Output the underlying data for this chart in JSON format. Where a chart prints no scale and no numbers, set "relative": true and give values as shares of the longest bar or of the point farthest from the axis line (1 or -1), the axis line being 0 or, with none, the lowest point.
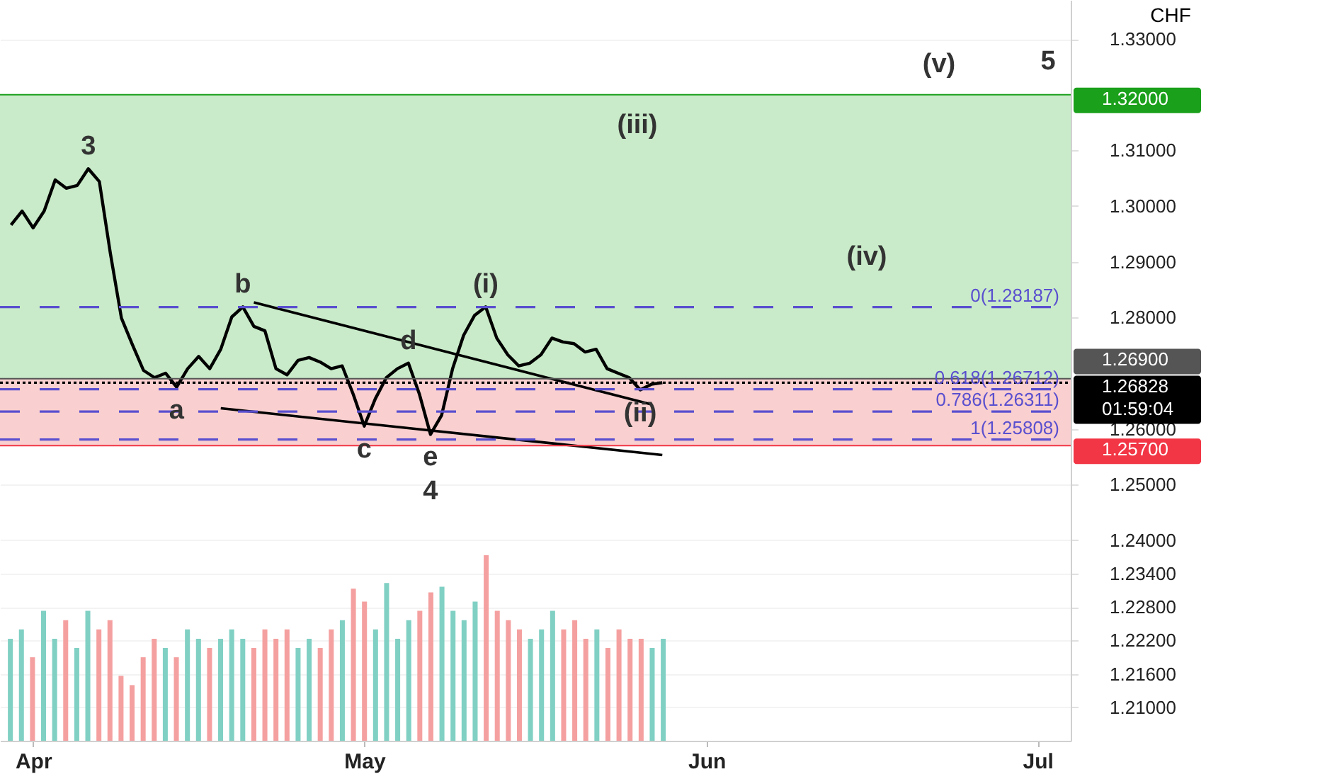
{
  "chart_data": [
    {
      "type": "line",
      "ylabel": "CHF",
      "x": [
        "--03-30",
        "--03-31",
        "--04-01",
        "--04-02",
        "--04-03",
        "--04-04",
        "--04-05",
        "--04-06",
        "--04-07",
        "--04-08",
        "--04-09",
        "--04-10",
        "--04-11",
        "--04-12",
        "--04-13",
        "--04-14",
        "--04-15",
        "--04-16",
        "--04-17",
        "--04-18",
        "--04-19",
        "--04-20",
        "--04-21",
        "--04-22",
        "--04-23",
        "--04-24",
        "--04-25",
        "--04-26",
        "--04-27",
        "--04-28",
        "--04-29",
        "--04-30",
        "--05-01",
        "--05-02",
        "--05-03",
        "--05-04",
        "--05-05",
        "--05-06",
        "--05-07",
        "--05-08",
        "--05-09",
        "--05-10",
        "--05-11",
        "--05-12",
        "--05-13",
        "--05-14",
        "--05-15",
        "--05-16",
        "--05-17",
        "--05-18",
        "--05-19",
        "--05-20",
        "--05-21",
        "--05-22",
        "--05-23",
        "--05-24",
        "--05-25",
        "--05-26",
        "--05-27",
        "--05-28"
      ],
      "series": [
        {
          "color": "#000000",
          "values": [
            1.2966,
            1.2991,
            1.2961,
            1.2991,
            1.3047,
            1.3032,
            1.3037,
            1.3067,
            1.3044,
            1.2915,
            1.2799,
            1.2751,
            1.2705,
            1.2692,
            1.27,
            1.2675,
            1.2708,
            1.273,
            1.2708,
            1.2743,
            1.2801,
            1.2819,
            1.2784,
            1.2776,
            1.2708,
            1.2697,
            1.2723,
            1.2728,
            1.272,
            1.2708,
            1.2713,
            1.2662,
            1.2605,
            1.2654,
            1.2692,
            1.2708,
            1.2718,
            1.2662,
            1.259,
            1.2624,
            1.2708,
            1.2768,
            1.2804,
            1.2819,
            1.2763,
            1.2733,
            1.2713,
            1.2718,
            1.2733,
            1.2763,
            1.2756,
            1.2753,
            1.2738,
            1.2743,
            1.2708,
            1.27,
            1.2692,
            1.267,
            1.268,
            1.2683
          ]
        },
        {
          "type": "line",
          "x": [
            "--04-21",
            "--05-27"
          ],
          "color": "#000000",
          "values": [
            1.2827,
            1.2644
          ]
        },
        {
          "type": "line",
          "x": [
            "--04-18",
            "--05-28"
          ],
          "color": "#000000",
          "values": [
            1.2637,
            1.2553
          ]
        }
      ],
      "xlim": [
        "--03-29",
        "--07-04"
      ],
      "ylim": [
        1.204,
        1.337
      ],
      "xticks": [
        {
          "value": "--04-01",
          "label": "Apr"
        },
        {
          "value": "--05-01",
          "label": "May"
        },
        {
          "value": "--06-01",
          "label": "Jun"
        },
        {
          "value": "--07-01",
          "label": "Jul"
        }
      ],
      "yticks": [
        {
          "value": 1.21,
          "label": "1.21000"
        },
        {
          "value": 1.216,
          "label": "1.21600"
        },
        {
          "value": 1.222,
          "label": "1.22200"
        },
        {
          "value": 1.228,
          "label": "1.22800"
        },
        {
          "value": 1.234,
          "label": "1.23400"
        },
        {
          "value": 1.24,
          "label": "1.24000"
        },
        {
          "value": 1.25,
          "label": "1.25000"
        },
        {
          "value": 1.26,
          "label": "1.26000"
        },
        {
          "value": 1.28,
          "label": "1.28000"
        },
        {
          "value": 1.29,
          "label": "1.29000"
        },
        {
          "value": 1.3,
          "label": "1.30000"
        },
        {
          "value": 1.31,
          "label": "1.31000"
        },
        {
          "value": 1.33,
          "label": "1.33000"
        }
      ],
      "grid": "y",
      "bands": [
        {
          "axis": "y",
          "from": 1.269,
          "to": 1.32,
          "color": "#c9ebc9"
        },
        {
          "axis": "y",
          "from": 1.257,
          "to": 1.269,
          "color": "#f9cfcf"
        }
      ],
      "ref_lines": [
        {
          "axis": "y",
          "value": 1.28187,
          "label": "0(1.28187)",
          "color": "#5a4fcf",
          "line_style": "dashed"
        },
        {
          "axis": "y",
          "value": 1.26712,
          "label": "0.618(1.26712)",
          "color": "#5a4fcf",
          "line_style": "dashed"
        },
        {
          "axis": "y",
          "value": 1.26311,
          "label": "0.786(1.26311)",
          "color": "#5a4fcf",
          "line_style": "dashed"
        },
        {
          "axis": "y",
          "value": 1.25808,
          "label": "1(1.25808)",
          "color": "#5a4fcf",
          "line_style": "dashed"
        },
        {
          "axis": "y",
          "value": 1.32,
          "label": "1.32000",
          "color": "#1aa01a",
          "line_style": "solid"
        },
        {
          "axis": "y",
          "value": 1.269,
          "label": "1.26900",
          "color": "#555555",
          "line_style": "solid"
        },
        {
          "axis": "y",
          "value": 1.26828,
          "label": "1.26828\n01:59:04",
          "color": "#000000",
          "line_style": "dotted"
        },
        {
          "axis": "y",
          "value": 1.257,
          "label": "1.25700",
          "color": "#f23645",
          "line_style": "solid"
        }
      ],
      "annotations": [
        {
          "text": "3",
          "x": "--04-06",
          "y": 1.3067
        },
        {
          "text": "a",
          "x": "--04-14",
          "y": 1.2675
        },
        {
          "text": "b",
          "x": "--04-20",
          "y": 1.2819
        },
        {
          "text": "c",
          "x": "--05-01",
          "y": 1.2605
        },
        {
          "text": "d",
          "x": "--05-05",
          "y": 1.2718
        },
        {
          "text": "e",
          "x": "--05-07",
          "y": 1.259
        },
        {
          "text": "4",
          "x": "--05-07",
          "y": 1.259
        },
        {
          "text": "(i)",
          "x": "--05-12",
          "y": 1.2819
        },
        {
          "text": "(ii)",
          "x": "--05-26",
          "y": 1.267
        },
        "(iii)",
        "(iv)",
        "(v)",
        "5"
      ]
    },
    {
      "type": "bar",
      "relative": true,
      "categories": [
        null,
        null,
        null,
        null,
        null,
        null,
        null,
        null,
        null,
        null,
        null,
        null,
        null,
        null,
        null,
        null,
        null,
        null,
        null,
        null,
        null,
        null,
        null,
        null,
        null,
        null,
        null,
        null,
        null,
        null,
        null,
        null,
        null,
        null,
        null,
        null,
        null,
        null,
        null,
        null,
        null,
        null,
        null,
        null,
        null,
        null,
        null,
        null,
        null,
        null,
        null,
        null,
        null,
        null,
        null,
        null,
        null,
        null,
        null,
        null
      ],
      "values": [
        0.55,
        0.6,
        0.45,
        0.7,
        0.55,
        0.65,
        0.5,
        0.7,
        0.6,
        0.65,
        0.35,
        0.3,
        0.45,
        0.55,
        0.5,
        0.45,
        0.6,
        0.55,
        0.5,
        0.55,
        0.6,
        0.55,
        0.5,
        0.6,
        0.55,
        0.6,
        0.5,
        0.55,
        0.5,
        0.6,
        0.65,
        0.82,
        0.75,
        0.6,
        0.85,
        0.55,
        0.65,
        0.7,
        0.8,
        0.83,
        0.7,
        0.65,
        0.75,
        1.0,
        0.7,
        0.65,
        0.6,
        0.55,
        0.6,
        0.7,
        0.6,
        0.65,
        0.55,
        0.6,
        0.5,
        0.6,
        0.55,
        0.55,
        0.5,
        0.55
      ],
      "colors": [
        "#80d0c4",
        "#80d0c4",
        "#f5a0a0",
        "#80d0c4",
        "#80d0c4",
        "#f5a0a0",
        "#80d0c4",
        "#80d0c4",
        "#f5a0a0",
        "#f5a0a0",
        "#f5a0a0",
        "#f5a0a0",
        "#f5a0a0",
        "#f5a0a0",
        "#80d0c4",
        "#f5a0a0",
        "#80d0c4",
        "#80d0c4",
        "#f5a0a0",
        "#80d0c4",
        "#80d0c4",
        "#80d0c4",
        "#f5a0a0",
        "#f5a0a0",
        "#f5a0a0",
        "#f5a0a0",
        "#80d0c4",
        "#80d0c4",
        "#f5a0a0",
        "#f5a0a0",
        "#80d0c4",
        "#f5a0a0",
        "#f5a0a0",
        "#80d0c4",
        "#80d0c4",
        "#80d0c4",
        "#80d0c4",
        "#f5a0a0",
        "#f5a0a0",
        "#80d0c4",
        "#80d0c4",
        "#80d0c4",
        "#80d0c4",
        "#f5a0a0",
        "#f5a0a0",
        "#f5a0a0",
        "#f5a0a0",
        "#80d0c4",
        "#80d0c4",
        "#80d0c4",
        "#f5a0a0",
        "#f5a0a0",
        "#f5a0a0",
        "#80d0c4",
        "#f5a0a0",
        "#f5a0a0",
        "#f5a0a0",
        "#f5a0a0",
        "#80d0c4",
        "#80d0c4"
      ]
    }
  ]
}
